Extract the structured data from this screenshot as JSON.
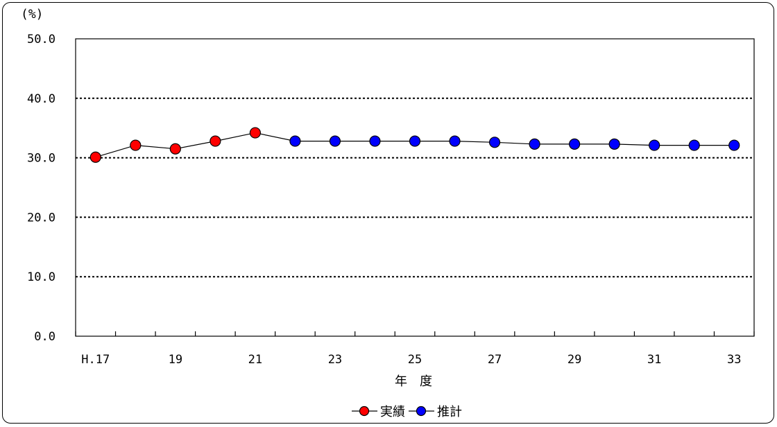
{
  "chart_data": {
    "type": "line",
    "y_unit_label": "(%)",
    "xlabel": "年　度",
    "ylim": [
      0,
      50
    ],
    "y_ticks": [
      "0.0",
      "10.0",
      "20.0",
      "30.0",
      "40.0",
      "50.0"
    ],
    "y_tick_values": [
      0,
      10,
      20,
      30,
      40,
      50
    ],
    "x": [
      17,
      18,
      19,
      20,
      21,
      22,
      23,
      24,
      25,
      26,
      27,
      28,
      29,
      30,
      31,
      32,
      33
    ],
    "x_tick_labels": [
      "H.17",
      "19",
      "21",
      "23",
      "25",
      "27",
      "29",
      "31",
      "33"
    ],
    "x_tick_label_values": [
      17,
      19,
      21,
      23,
      25,
      27,
      29,
      31,
      33
    ],
    "grid": "horizontal dotted",
    "values": [
      30.1,
      32.1,
      31.5,
      32.8,
      34.2,
      32.8,
      32.8,
      32.8,
      32.8,
      32.8,
      32.6,
      32.3,
      32.3,
      32.3,
      32.1,
      32.1,
      32.1
    ],
    "series": [
      {
        "name": "実績",
        "color": "#ff0000",
        "x": [
          17,
          18,
          19,
          20,
          21
        ],
        "values": [
          30.1,
          32.1,
          31.5,
          32.8,
          34.2
        ]
      },
      {
        "name": "推計",
        "color": "#0000ff",
        "x": [
          22,
          23,
          24,
          25,
          26,
          27,
          28,
          29,
          30,
          31,
          32,
          33
        ],
        "values": [
          32.8,
          32.8,
          32.8,
          32.8,
          32.8,
          32.6,
          32.3,
          32.3,
          32.3,
          32.1,
          32.1,
          32.1
        ]
      }
    ],
    "legend_position": "bottom-center"
  }
}
